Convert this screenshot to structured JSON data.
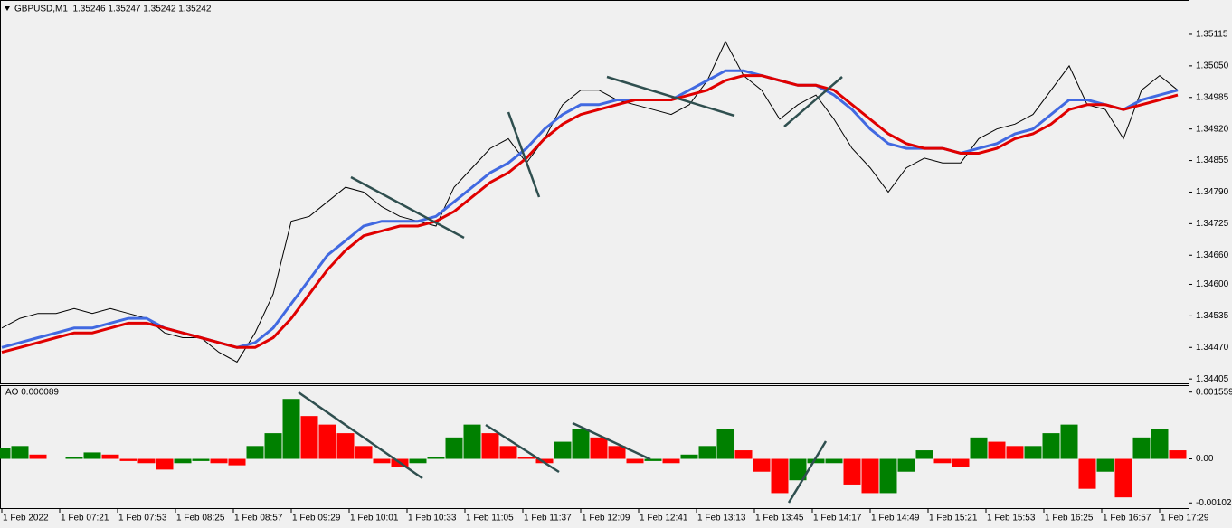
{
  "chart_data": [
    {
      "type": "line",
      "title": "GBPUSD,M1  1.35246 1.35247 1.35242 1.35242",
      "x": [
        0,
        10,
        20,
        30,
        40,
        50,
        60,
        70,
        80,
        90,
        100,
        110,
        120,
        130,
        140,
        150,
        160,
        170,
        180,
        190,
        200,
        210,
        220,
        230,
        240,
        250,
        260,
        270,
        280,
        290,
        300,
        310,
        320,
        330,
        340,
        350,
        360,
        370,
        380,
        390,
        400,
        410,
        420,
        430,
        440,
        450,
        460,
        470,
        480,
        490,
        500,
        510,
        520,
        530,
        540,
        550,
        560,
        570,
        580,
        590,
        600,
        610,
        620,
        630,
        640,
        650
      ],
      "xlim": [
        -1,
        656
      ],
      "xticks": [
        {
          "value": 0,
          "label": "1 Feb 2022"
        },
        {
          "value": 32,
          "label": "1 Feb 07:21"
        },
        {
          "value": 64,
          "label": "1 Feb 07:53"
        },
        {
          "value": 96,
          "label": "1 Feb 08:25"
        },
        {
          "value": 128,
          "label": "1 Feb 08:57"
        },
        {
          "value": 160,
          "label": "1 Feb 09:29"
        },
        {
          "value": 192,
          "label": "1 Feb 10:01"
        },
        {
          "value": 224,
          "label": "1 Feb 10:33"
        },
        {
          "value": 256,
          "label": "1 Feb 11:05"
        },
        {
          "value": 288,
          "label": "1 Feb 11:37"
        },
        {
          "value": 320,
          "label": "1 Feb 12:09"
        },
        {
          "value": 352,
          "label": "1 Feb 12:41"
        },
        {
          "value": 384,
          "label": "1 Feb 13:13"
        },
        {
          "value": 416,
          "label": "1 Feb 13:45"
        },
        {
          "value": 448,
          "label": "1 Feb 14:17"
        },
        {
          "value": 480,
          "label": "1 Feb 14:49"
        },
        {
          "value": 512,
          "label": "1 Feb 15:21"
        },
        {
          "value": 544,
          "label": "1 Feb 15:53"
        },
        {
          "value": 576,
          "label": "1 Feb 16:25"
        },
        {
          "value": 608,
          "label": "1 Feb 16:57"
        },
        {
          "value": 640,
          "label": "1 Feb 17:29"
        }
      ],
      "ylim": [
        1.34396,
        1.35182
      ],
      "yticks": [
        1.35115,
        {
          "value": 1.3505,
          "label": "1.35050"
        },
        1.34985,
        {
          "value": 1.3492,
          "label": "1.34920"
        },
        1.34855,
        {
          "value": 1.3479,
          "label": "1.34790"
        },
        1.34725,
        {
          "value": 1.3466,
          "label": "1.34660"
        },
        {
          "value": 1.346,
          "label": "1.34600"
        },
        1.34535,
        {
          "value": 1.3447,
          "label": "1.34470"
        },
        1.34405
      ],
      "series": [
        {
          "color": "#000000",
          "values": [
            1.3451,
            1.3453,
            1.3454,
            1.3454,
            1.3455,
            1.3454,
            1.3455,
            1.3454,
            1.3453,
            1.345,
            1.3449,
            1.3449,
            1.3446,
            1.3444,
            1.345,
            1.3458,
            1.3473,
            1.3474,
            1.3477,
            1.348,
            1.3479,
            1.3476,
            1.3474,
            1.3473,
            1.3472,
            1.348,
            1.3484,
            1.3488,
            1.349,
            1.3485,
            1.349,
            1.3497,
            1.35,
            1.35,
            1.3498,
            1.3497,
            1.3496,
            1.3495,
            1.3497,
            1.3502,
            1.351,
            1.3503,
            1.35,
            1.3494,
            1.3497,
            1.3499,
            1.3494,
            1.3488,
            1.3484,
            1.3479,
            1.3484,
            1.3486,
            1.3485,
            1.3485,
            1.349,
            1.3492,
            1.3493,
            1.3495,
            1.35,
            1.3505,
            1.3497,
            1.3496,
            1.349,
            1.35,
            1.3503,
            1.35
          ]
        },
        {
          "color": "#4169e1",
          "values": [
            1.3447,
            1.3448,
            1.3449,
            1.345,
            1.3451,
            1.3451,
            1.3452,
            1.3453,
            1.3453,
            1.3451,
            1.345,
            1.3449,
            1.3448,
            1.3447,
            1.3448,
            1.3451,
            1.3456,
            1.3461,
            1.3466,
            1.3469,
            1.3472,
            1.3473,
            1.3473,
            1.3473,
            1.3474,
            1.3477,
            1.348,
            1.3483,
            1.3485,
            1.3488,
            1.3492,
            1.3495,
            1.3497,
            1.3497,
            1.3498,
            1.3498,
            1.3498,
            1.3498,
            1.35,
            1.3502,
            1.3504,
            1.3504,
            1.3503,
            1.3502,
            1.3501,
            1.3501,
            1.3499,
            1.3496,
            1.3492,
            1.3489,
            1.3488,
            1.3488,
            1.3488,
            1.3487,
            1.3488,
            1.3489,
            1.3491,
            1.3492,
            1.3495,
            1.3498,
            1.3498,
            1.3497,
            1.3496,
            1.3498,
            1.3499,
            1.35
          ]
        },
        {
          "color": "#e00000",
          "values": [
            1.3446,
            1.3447,
            1.3448,
            1.3449,
            1.345,
            1.345,
            1.3451,
            1.3452,
            1.3452,
            1.3451,
            1.345,
            1.3449,
            1.3448,
            1.3447,
            1.3447,
            1.3449,
            1.3453,
            1.3458,
            1.3463,
            1.3467,
            1.347,
            1.3471,
            1.3472,
            1.3472,
            1.3473,
            1.3475,
            1.3478,
            1.3481,
            1.3483,
            1.3486,
            1.349,
            1.3493,
            1.3495,
            1.3496,
            1.3497,
            1.3498,
            1.3498,
            1.3498,
            1.3499,
            1.35,
            1.3502,
            1.3503,
            1.3503,
            1.3502,
            1.3501,
            1.3501,
            1.35,
            1.3497,
            1.3494,
            1.3491,
            1.3489,
            1.3488,
            1.3488,
            1.3487,
            1.3487,
            1.3488,
            1.349,
            1.3491,
            1.3493,
            1.3496,
            1.3497,
            1.3497,
            1.3496,
            1.3497,
            1.3498,
            1.3499
          ]
        }
      ]
    },
    {
      "type": "bar",
      "title": "AO 0.000089",
      "x": [
        0,
        10,
        20,
        30,
        40,
        50,
        60,
        70,
        80,
        90,
        100,
        110,
        120,
        130,
        140,
        150,
        160,
        170,
        180,
        190,
        200,
        210,
        220,
        230,
        240,
        250,
        260,
        270,
        280,
        290,
        300,
        310,
        320,
        330,
        340,
        350,
        360,
        370,
        380,
        390,
        400,
        410,
        420,
        430,
        440,
        450,
        460,
        470,
        480,
        490,
        500,
        510,
        520,
        530,
        540,
        550,
        560,
        570,
        580,
        590,
        600,
        610,
        620,
        630,
        640,
        650
      ],
      "xlim": [
        -1,
        656
      ],
      "ylim": [
        -0.00115,
        0.0017
      ],
      "yticks": [
        0.001559,
        {
          "value": 0,
          "label": "0.00"
        },
        -0.001029
      ],
      "up_color": "#008000",
      "down_color": "#ff0000",
      "values": [
        0.00025,
        0.0003,
        0.0001,
        0,
        5e-05,
        0.00015,
        0.0001,
        -5e-05,
        -0.0001,
        -0.00025,
        -0.0001,
        -5e-05,
        -0.0001,
        -0.00015,
        0.0003,
        0.0006,
        0.0014,
        0.001,
        0.0008,
        0.0006,
        0.0003,
        -0.0001,
        -0.0002,
        -0.0001,
        5e-05,
        0.0005,
        0.0008,
        0.0006,
        0.0003,
        5e-05,
        -0.0001,
        0.0004,
        0.0007,
        0.0005,
        0.0003,
        -0.0001,
        -5e-05,
        -0.0001,
        0.0001,
        0.0003,
        0.0007,
        0.0002,
        -0.0003,
        -0.0008,
        -0.0005,
        -0.0001,
        -0.0001,
        -0.0006,
        -0.0008,
        -0.0008,
        -0.0003,
        0.0002,
        -0.0001,
        -0.0002,
        0.0005,
        0.0004,
        0.0003,
        0.0003,
        0.0006,
        0.0008,
        -0.0007,
        -0.0003,
        -0.0009,
        0.0005,
        0.0007,
        0.0002
      ]
    }
  ]
}
